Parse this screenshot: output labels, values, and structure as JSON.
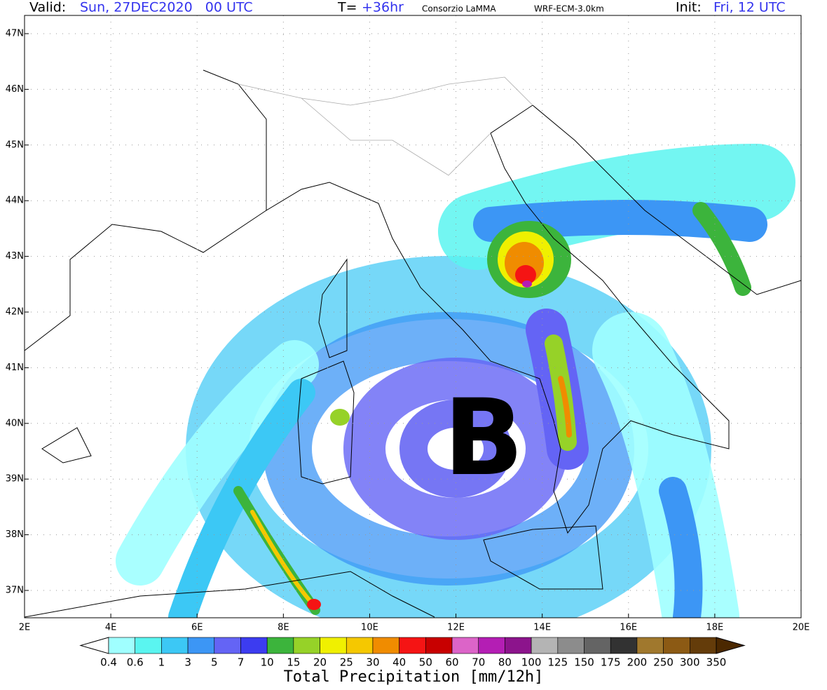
{
  "header": {
    "valid_label": "Valid:",
    "valid_time": "Sun, 27DEC2020   00 UTC",
    "forecast_label": "T=",
    "forecast_hour": "+36hr",
    "source": "Consorzio LaMMA",
    "model": "WRF-ECM-3.0km",
    "init_label": "Init:",
    "init_time": "Fri, 12 UTC"
  },
  "map": {
    "lat_labels": [
      "47N",
      "46N",
      "45N",
      "44N",
      "43N",
      "42N",
      "41N",
      "40N",
      "39N",
      "38N",
      "37N"
    ],
    "lon_labels": [
      "2E",
      "4E",
      "6E",
      "8E",
      "10E",
      "12E",
      "14E",
      "16E",
      "18E",
      "20E"
    ],
    "low_marker": "B"
  },
  "colorbar": {
    "labels": [
      "0.4",
      "0.6",
      "1",
      "3",
      "5",
      "7",
      "10",
      "15",
      "20",
      "25",
      "30",
      "40",
      "50",
      "60",
      "70",
      "80",
      "100",
      "125",
      "150",
      "175",
      "200",
      "250",
      "300",
      "350"
    ],
    "colors": [
      "#ffffff",
      "#a0ffff",
      "#5af5f0",
      "#3cc8f5",
      "#3c96f5",
      "#6464f5",
      "#3c3cf0",
      "#3cb43c",
      "#96d228",
      "#f0f000",
      "#f5c800",
      "#f08c00",
      "#f51414",
      "#c80000",
      "#dc64c8",
      "#b41eb4",
      "#8c148c",
      "#b4b4b4",
      "#8c8c8c",
      "#646464",
      "#323232",
      "#a0782d",
      "#8c5a14",
      "#643c0a",
      "#4b2800"
    ],
    "title": "Total Precipitation [mm/12h]"
  }
}
